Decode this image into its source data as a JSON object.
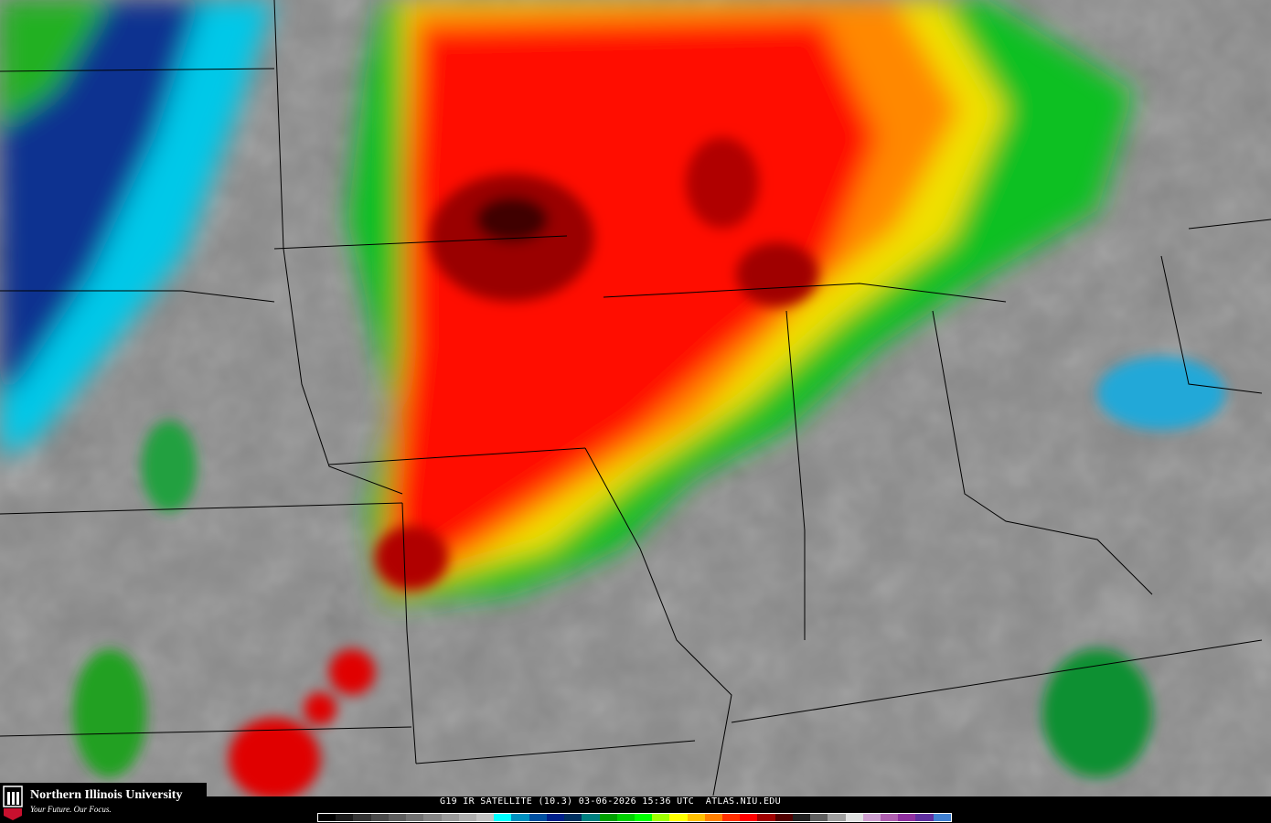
{
  "caption": "G19 IR SATELLITE (10.3) 03-06-2026 15:36 UTC  ATLAS.NIU.EDU",
  "logo": {
    "name": "Northern Illinois University",
    "tagline": "Your Future. Our Focus.",
    "mark": "NIU"
  },
  "colors": {
    "background_gray": "#8c8c8c",
    "cloud_cyan": "#00d8f0",
    "cloud_blue": "#0a2a90",
    "cloud_green": "#10c010",
    "cloud_yellow": "#f0f000",
    "cloud_orange": "#ff9000",
    "cloud_red": "#ff0000",
    "cloud_darkred": "#8a0000"
  },
  "color_scale": [
    "#000000",
    "#1a1a1a",
    "#333333",
    "#4a4a4a",
    "#5e5e5e",
    "#727272",
    "#868686",
    "#9a9a9a",
    "#aeaeae",
    "#c2c2c2",
    "#00ffff",
    "#0090c0",
    "#0050a0",
    "#00208a",
    "#003060",
    "#008080",
    "#00a000",
    "#00d000",
    "#00ff00",
    "#a0ff00",
    "#ffff00",
    "#ffc000",
    "#ff8000",
    "#ff3000",
    "#ff0000",
    "#a00000",
    "#500000",
    "#202020",
    "#606060",
    "#a0a0a0",
    "#e0e0e0",
    "#d0a0d0",
    "#b060b0",
    "#9030a0",
    "#6030a0",
    "#4080d0"
  ]
}
